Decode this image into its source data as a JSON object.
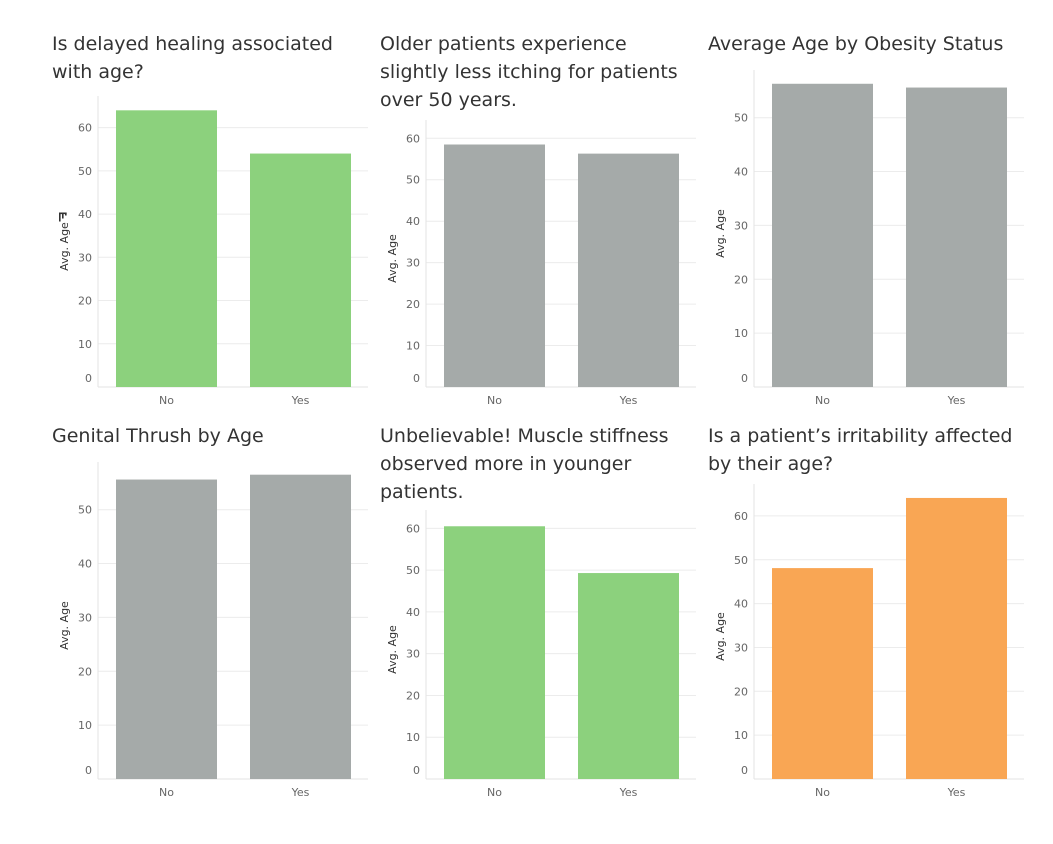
{
  "chart_data": [
    {
      "type": "bar",
      "title": [
        "Is delayed healing associated",
        "with age?"
      ],
      "ylabel": "Avg. Age",
      "categories": [
        "No",
        "Yes"
      ],
      "values": [
        64,
        54
      ],
      "ylim": [
        0,
        65
      ],
      "yticks": [
        0,
        10,
        20,
        30,
        40,
        50,
        60
      ],
      "bar_color": "#8CD17D",
      "ylabel_icon": true
    },
    {
      "type": "bar",
      "title": [
        "Older patients experience",
        "slightly less itching for patients",
        "over 50 years."
      ],
      "ylabel": "Avg. Age",
      "categories": [
        "No",
        "Yes"
      ],
      "values": [
        58.5,
        56.3
      ],
      "ylim": [
        0,
        62
      ],
      "yticks": [
        0,
        10,
        20,
        30,
        40,
        50,
        60
      ],
      "bar_color": "#A5AAA9"
    },
    {
      "type": "bar",
      "title": [
        "Average Age by Obesity Status"
      ],
      "ylabel": "Avg. Age",
      "categories": [
        "No",
        "Yes"
      ],
      "values": [
        56.3,
        55.6
      ],
      "ylim": [
        0,
        57
      ],
      "yticks": [
        0,
        10,
        20,
        30,
        40,
        50
      ],
      "bar_color": "#A5AAA9"
    },
    {
      "type": "bar",
      "title": [
        "Genital Thrush by Age"
      ],
      "ylabel": "Avg. Age",
      "categories": [
        "No",
        "Yes"
      ],
      "values": [
        55.6,
        56.5
      ],
      "ylim": [
        0,
        57
      ],
      "yticks": [
        0,
        10,
        20,
        30,
        40,
        50
      ],
      "bar_color": "#A5AAA9"
    },
    {
      "type": "bar",
      "title": [
        "Unbelievable! Muscle stiffness",
        "observed more in younger",
        "patients."
      ],
      "ylabel": "Avg. Age",
      "categories": [
        "No",
        "Yes"
      ],
      "values": [
        60.5,
        49.3
      ],
      "ylim": [
        0,
        62
      ],
      "yticks": [
        0,
        10,
        20,
        30,
        40,
        50,
        60
      ],
      "bar_color": "#8CD17D"
    },
    {
      "type": "bar",
      "title": [
        "Is a patient’s irritability affected",
        "by their age?"
      ],
      "ylabel": "Avg. Age",
      "categories": [
        "No",
        "Yes"
      ],
      "values": [
        48.1,
        64.1
      ],
      "ylim": [
        0,
        65
      ],
      "yticks": [
        0,
        10,
        20,
        30,
        40,
        50,
        60
      ],
      "bar_color": "#F9A654"
    }
  ]
}
